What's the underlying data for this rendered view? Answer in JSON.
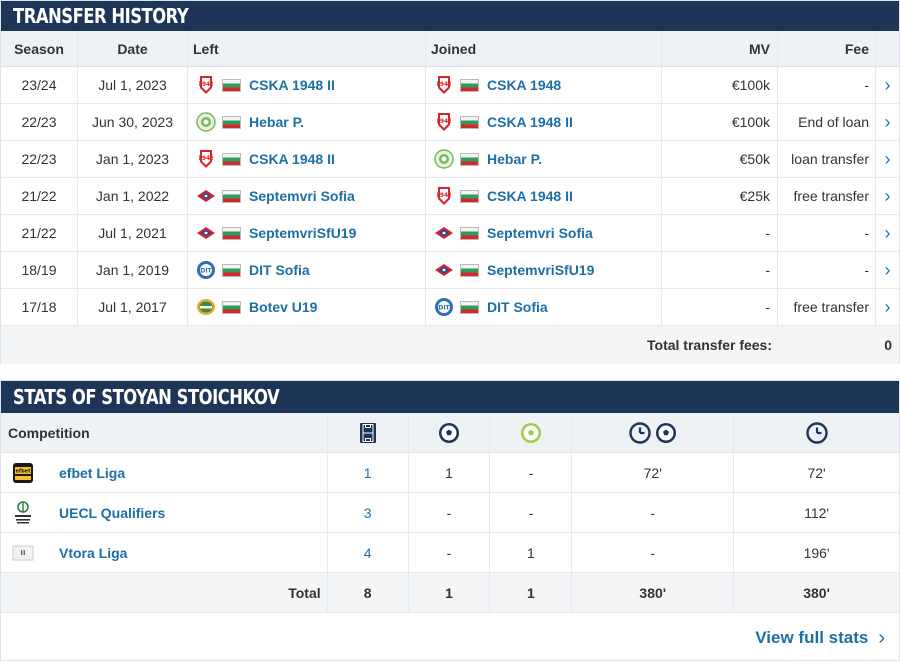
{
  "transfer": {
    "title": "TRANSFER HISTORY",
    "headers": {
      "season": "Season",
      "date": "Date",
      "left": "Left",
      "joined": "Joined",
      "mv": "MV",
      "fee": "Fee"
    },
    "rows": [
      {
        "season": "23/24",
        "date": "Jul 1, 2023",
        "left": "CSKA 1948 II",
        "left_logo": "cska-logo",
        "joined": "CSKA 1948",
        "joined_logo": "cska-logo",
        "mv": "€100k",
        "fee": "-"
      },
      {
        "season": "22/23",
        "date": "Jun 30, 2023",
        "left": "Hebar P.",
        "left_logo": "hebar-logo",
        "joined": "CSKA 1948 II",
        "joined_logo": "cska-logo",
        "mv": "€100k",
        "fee": "End of loan"
      },
      {
        "season": "22/23",
        "date": "Jan 1, 2023",
        "left": "CSKA 1948 II",
        "left_logo": "cska-logo",
        "joined": "Hebar P.",
        "joined_logo": "hebar-logo",
        "mv": "€50k",
        "fee": "loan transfer"
      },
      {
        "season": "21/22",
        "date": "Jan 1, 2022",
        "left": "Septemvri Sofia",
        "left_logo": "septemvri-logo",
        "joined": "CSKA 1948 II",
        "joined_logo": "cska-logo",
        "mv": "€25k",
        "fee": "free transfer"
      },
      {
        "season": "21/22",
        "date": "Jul 1, 2021",
        "left": "SeptemvriSfU19",
        "left_logo": "septemvri-logo",
        "joined": "Septemvri Sofia",
        "joined_logo": "septemvri-logo",
        "mv": "-",
        "fee": "-"
      },
      {
        "season": "18/19",
        "date": "Jan 1, 2019",
        "left": "DIT Sofia",
        "left_logo": "dit-logo",
        "joined": "SeptemvriSfU19",
        "joined_logo": "septemvri-logo",
        "mv": "-",
        "fee": "-"
      },
      {
        "season": "17/18",
        "date": "Jul 1, 2017",
        "left": "Botev U19",
        "left_logo": "botev-logo",
        "joined": "DIT Sofia",
        "joined_logo": "dit-logo",
        "mv": "-",
        "fee": "free transfer"
      }
    ],
    "total_label": "Total transfer fees:",
    "total_value": "0"
  },
  "stats": {
    "title": "STATS OF STOYAN STOICHKOV",
    "competition_header": "Competition",
    "column_icons": [
      "pitch-icon",
      "ball-icon",
      "assist-ball-icon",
      "minutes-per-goal-icon",
      "minutes-icon"
    ],
    "rows": [
      {
        "competition": "efbet Liga",
        "logo": "efbet-liga-logo",
        "apps": "1",
        "goals": "1",
        "assists": "-",
        "min_per_goal": "72'",
        "minutes": "72'"
      },
      {
        "competition": "UECL Qualifiers",
        "logo": "uecl-logo",
        "apps": "3",
        "goals": "-",
        "assists": "-",
        "min_per_goal": "-",
        "minutes": "112'"
      },
      {
        "competition": "Vtora Liga",
        "logo": "vtora-liga-logo",
        "apps": "4",
        "goals": "-",
        "assists": "1",
        "min_per_goal": "-",
        "minutes": "196'"
      }
    ],
    "total": {
      "label": "Total",
      "apps": "8",
      "goals": "1",
      "assists": "1",
      "min_per_goal": "380'",
      "minutes": "380'"
    },
    "view_full": "View full stats"
  },
  "colors": {
    "header_bg": "#1d3557",
    "link": "#1d6fa5",
    "arrow": "#1a73c9"
  }
}
